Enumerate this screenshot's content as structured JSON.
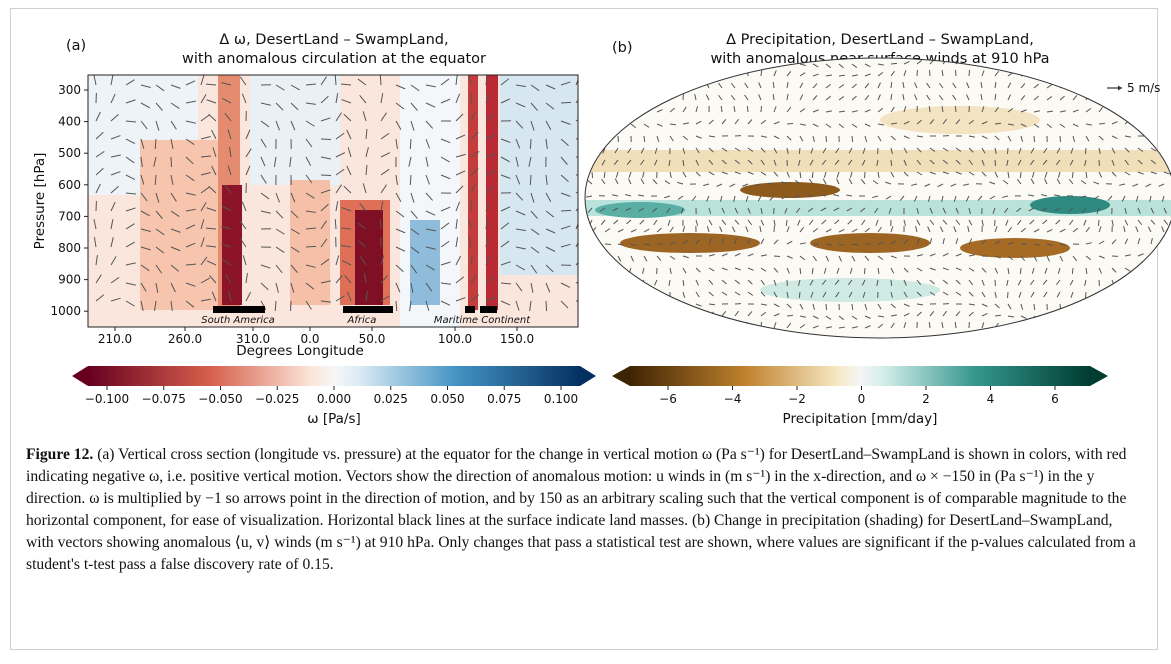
{
  "figure": {
    "panel_a": {
      "label": "(a)",
      "title_line1": "Δ ω, DesertLand – SwampLand,",
      "title_line2": "with anomalous circulation at the equator",
      "y_axis_label": "Pressure [hPa]",
      "y_ticks": [
        "300",
        "400",
        "500",
        "600",
        "700",
        "800",
        "900",
        "1000"
      ],
      "x_axis_label": "Degrees Longitude",
      "x_ticks": [
        "210.0",
        "260.0",
        "310.0",
        "0.0",
        "50.0",
        "100.0",
        "150.0"
      ],
      "land_labels": [
        "South America",
        "Africa",
        "Maritime Continent"
      ],
      "colorbar": {
        "ticks": [
          "−0.100",
          "−0.075",
          "−0.050",
          "−0.025",
          "0.000",
          "0.025",
          "0.050",
          "0.075",
          "0.100"
        ],
        "label": "ω [Pa/s]"
      }
    },
    "panel_b": {
      "label": "(b)",
      "title_line1": "Δ Precipitation, DesertLand – SwampLand,",
      "title_line2": "with anomalous near-surface winds at 910 hPa",
      "vector_key": "5 m/s",
      "colorbar": {
        "ticks": [
          "−6",
          "−4",
          "−2",
          "0",
          "2",
          "4",
          "6"
        ],
        "label": "Precipitation [mm/day]"
      }
    }
  },
  "caption": {
    "label": "Figure 12.",
    "text": "(a) Vertical cross section (longitude vs. pressure) at the equator for the change in vertical motion ω (Pa s⁻¹) for DesertLand–SwampLand is shown in colors, with red indicating negative ω, i.e. positive vertical motion. Vectors show the direction of anomalous motion: u winds in (m s⁻¹) in the x-direction, and ω × −150 in (Pa s⁻¹) in the y direction. ω is multiplied by −1 so arrows point in the direction of motion, and by 150 as an arbitrary scaling such that the vertical component is of comparable magnitude to the horizontal component, for ease of visualization. Horizontal black lines at the surface indicate land masses. (b) Change in precipitation (shading) for DesertLand–SwampLand, with vectors showing anomalous ⟨u, v⟩ winds (m s⁻¹) at 910 hPa. Only changes that pass a statistical test are shown, where values are significant if the p-values calculated from a student's t-test pass a false discovery rate of 0.15."
  }
}
